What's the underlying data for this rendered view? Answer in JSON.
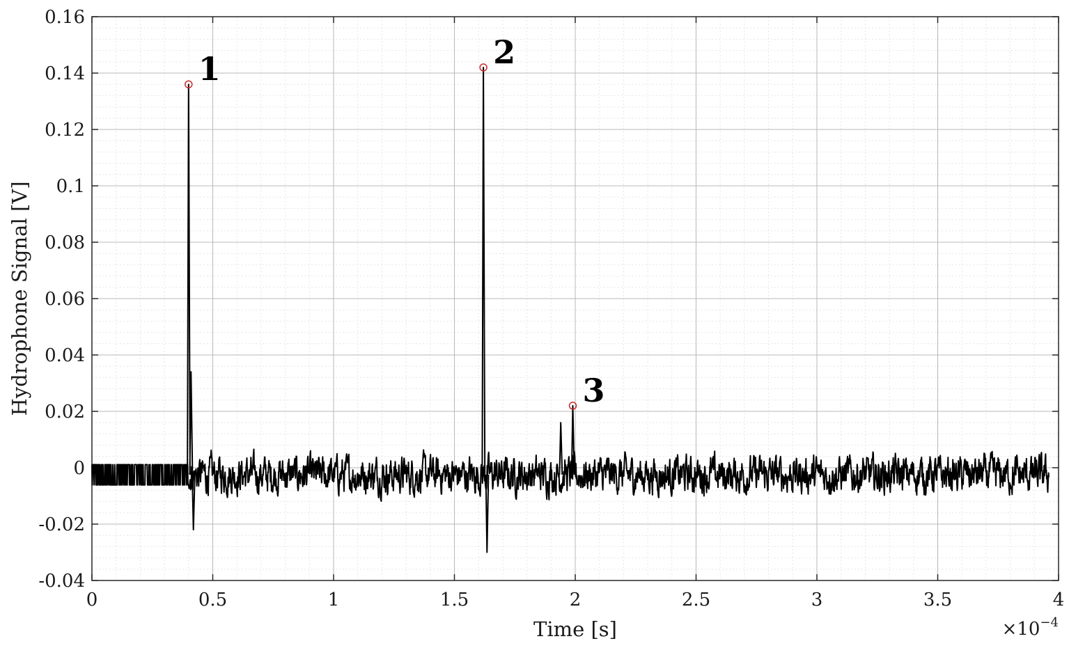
{
  "chart_data": {
    "type": "line",
    "xlabel": "Time [s]",
    "ylabel": "Hydrophone Signal [V]",
    "x_exponent_label": "×10",
    "x_exponent_power": "−4",
    "xlim": [
      0,
      4
    ],
    "ylim": [
      -0.04,
      0.16
    ],
    "x_ticks": [
      0,
      0.5,
      1,
      1.5,
      2,
      2.5,
      3,
      3.5,
      4
    ],
    "x_tick_labels": [
      "0",
      "0.5",
      "1",
      "1.5",
      "2",
      "2.5",
      "3",
      "3.5",
      "4"
    ],
    "y_ticks": [
      -0.04,
      -0.02,
      0,
      0.02,
      0.04,
      0.06,
      0.08,
      0.1,
      0.12,
      0.14,
      0.16
    ],
    "y_tick_labels": [
      "-0.04",
      "-0.02",
      "0",
      "0.02",
      "0.04",
      "0.06",
      "0.08",
      "0.1",
      "0.12",
      "0.14",
      "0.16"
    ],
    "grid": true,
    "minor_grid": true,
    "line_color": "#000000",
    "marker_color": "#cc2a2a",
    "series": [
      {
        "x_end": 3.96,
        "baseline": -0.0025,
        "noise_amplitude": 0.004,
        "events": [
          {
            "x": 0.4,
            "y": 0.136
          },
          {
            "x": 0.41,
            "y": 0.034
          },
          {
            "x": 0.42,
            "y": -0.022
          },
          {
            "x": 1.62,
            "y": 0.142
          },
          {
            "x": 1.635,
            "y": -0.03
          },
          {
            "x": 1.94,
            "y": 0.016
          },
          {
            "x": 1.99,
            "y": 0.022
          }
        ]
      }
    ],
    "peaks": [
      {
        "label": "1",
        "x": 0.4,
        "y": 0.136
      },
      {
        "label": "2",
        "x": 1.62,
        "y": 0.142
      },
      {
        "label": "3",
        "x": 1.99,
        "y": 0.022
      }
    ]
  }
}
